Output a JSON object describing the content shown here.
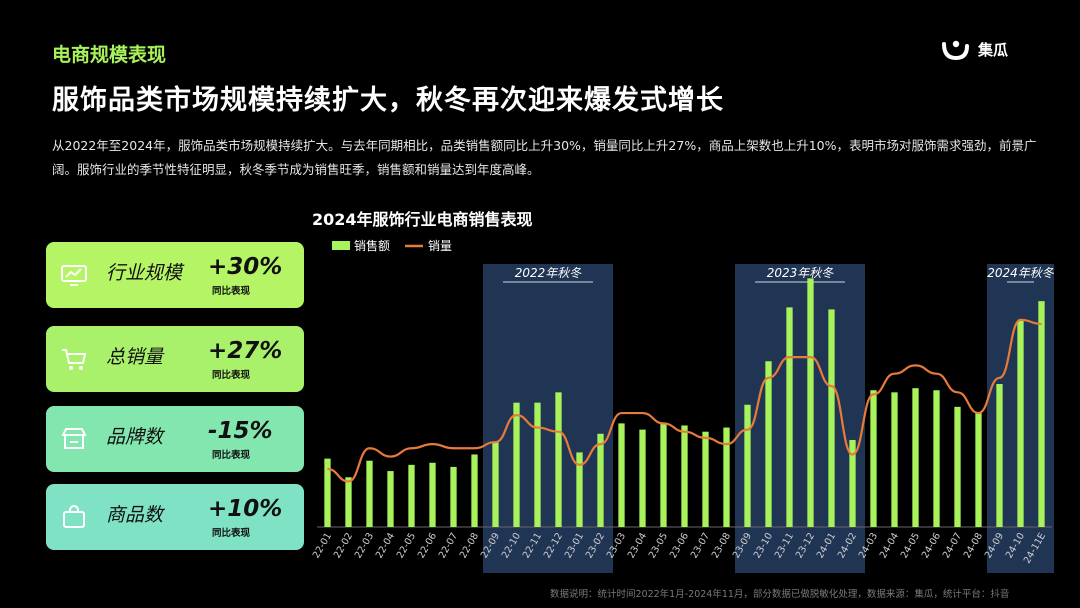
{
  "header": {
    "section_label": "电商规模表现",
    "headline": "服饰品类市场规模持续扩大，秋冬再次迎来爆发式增长",
    "intro": "从2022年至2024年，服饰品类市场规模持续扩大。与去年同期相比，品类销售额同比上升30%，销量同比上升27%，商品上架数也上升10%，表明市场对服饰需求强劲，前景广阔。服饰行业的季节性特征明显，秋冬季节成为销售旺季，销售额和销量达到年度高峰。"
  },
  "logo": {
    "text": "集瓜"
  },
  "cards": [
    {
      "label": "行业规模",
      "value": "+30%",
      "sub": "同比表现",
      "icon": "monitor-chart-icon",
      "color": "#b5f565"
    },
    {
      "label": "总销量",
      "value": "+27%",
      "sub": "同比表现",
      "icon": "cart-icon",
      "color": "#a9f16a"
    },
    {
      "label": "品牌数",
      "value": "-15%",
      "sub": "同比表现",
      "icon": "store-icon",
      "color": "#82e6ae"
    },
    {
      "label": "商品数",
      "value": "+10%",
      "sub": "同比表现",
      "icon": "shopping-bag-icon",
      "color": "#7fe2c4"
    }
  ],
  "footnote": "数据说明：统计时间2022年1月-2024年11月，部分数据已做脱敏化处理，数据来源：集瓜，统计平台：抖音",
  "chart_data": {
    "type": "bar",
    "title": "2024年服饰行业电商销售表现",
    "categories": [
      "22-01",
      "22-02",
      "22-03",
      "22-04",
      "22-05",
      "22-06",
      "22-07",
      "22-08",
      "22-09",
      "22-10",
      "22-11",
      "22-12",
      "23-01",
      "23-02",
      "23-03",
      "23-04",
      "23-05",
      "23-06",
      "23-07",
      "23-08",
      "23-09",
      "23-10",
      "23-11",
      "23-12",
      "24-01",
      "24-02",
      "24-03",
      "24-04",
      "24-05",
      "24-06",
      "24-07",
      "24-08",
      "24-09",
      "24-10",
      "24-11E"
    ],
    "series": [
      {
        "name": "销售额",
        "type": "bar",
        "color": "#a8f25b",
        "values": [
          33,
          24,
          32,
          27,
          30,
          31,
          29,
          35,
          41,
          60,
          60,
          65,
          36,
          45,
          50,
          47,
          50,
          49,
          46,
          48,
          59,
          80,
          106,
          120,
          105,
          42,
          66,
          65,
          67,
          66,
          58,
          55,
          69,
          100,
          109
        ]
      },
      {
        "name": "销量",
        "type": "line",
        "color": "#e87a3a",
        "values": [
          28,
          22,
          38,
          34,
          38,
          40,
          38,
          38,
          41,
          54,
          48,
          46,
          30,
          40,
          55,
          55,
          50,
          46,
          43,
          40,
          47,
          72,
          82,
          82,
          68,
          35,
          64,
          74,
          78,
          74,
          65,
          55,
          72,
          100,
          98
        ]
      }
    ],
    "highlights": [
      {
        "label": "2022年秋冬",
        "from": "22-09",
        "to": "23-02"
      },
      {
        "label": "2023年秋冬",
        "from": "23-09",
        "to": "24-02"
      },
      {
        "label": "2024年秋冬",
        "from": "24-09",
        "to": "24-11E"
      }
    ],
    "legend": "top-left",
    "grid": false,
    "ylim": [
      0,
      125
    ]
  }
}
